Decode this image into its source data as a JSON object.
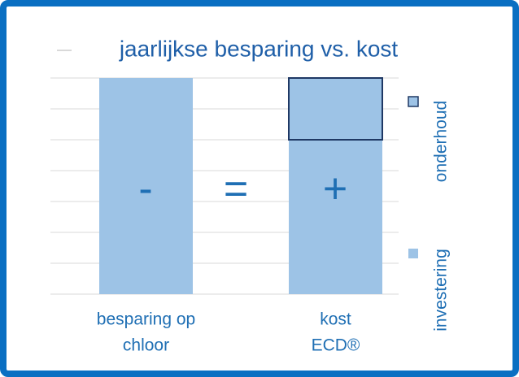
{
  "chart_data": {
    "type": "stacked-bar",
    "title": "jaarlijkse besparing vs. kost",
    "categories": [
      [
        "besparing op",
        "chloor"
      ],
      [
        "kost",
        "ECD®"
      ]
    ],
    "series": [
      {
        "name": "investering",
        "color": "#9dc3e6",
        "values": [
          7,
          5
        ]
      },
      {
        "name": "onderhoud",
        "color": "#9dc3e6",
        "edge": "#1f3864",
        "values": [
          null,
          2
        ]
      }
    ],
    "ylim": [
      0,
      7
    ],
    "yticks": [
      0,
      1,
      2,
      3,
      4,
      5,
      6,
      7
    ],
    "grid": true,
    "legend": "right",
    "annotations": [
      "-",
      "=",
      "+"
    ]
  }
}
